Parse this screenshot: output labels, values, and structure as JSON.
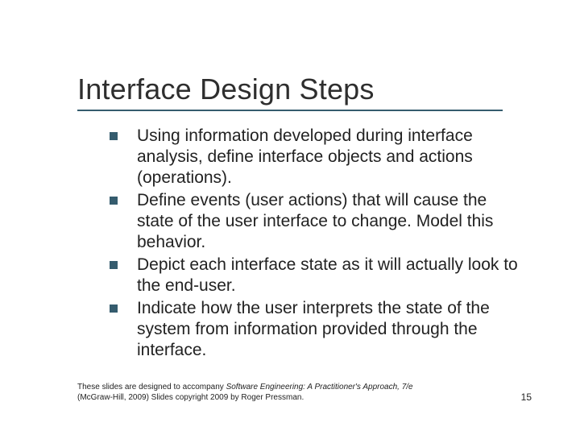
{
  "title": "Interface Design Steps",
  "title_color": "#2e2e2e",
  "title_fontsize": 36,
  "rule_color": "#355c6e",
  "bullet_color": "#355c6e",
  "bullet_size": 10,
  "body_fontsize": 21,
  "background_color": "#ffffff",
  "bullets": [
    "Using information developed during interface analysis, define interface objects and actions (operations).",
    "Define events (user actions) that will cause the state of the user interface to change. Model this behavior.",
    "Depict each interface state as it will actually look to the end-user.",
    "Indicate how the user interprets the state of the system from information provided through the interface."
  ],
  "footer": {
    "prefix": "These slides are designed to accompany ",
    "italic": "Software Engineering: A Practitioner's Approach, 7/e",
    "suffix": " (McGraw-Hill, 2009) Slides copyright 2009 by Roger Pressman."
  },
  "page_number": "15"
}
